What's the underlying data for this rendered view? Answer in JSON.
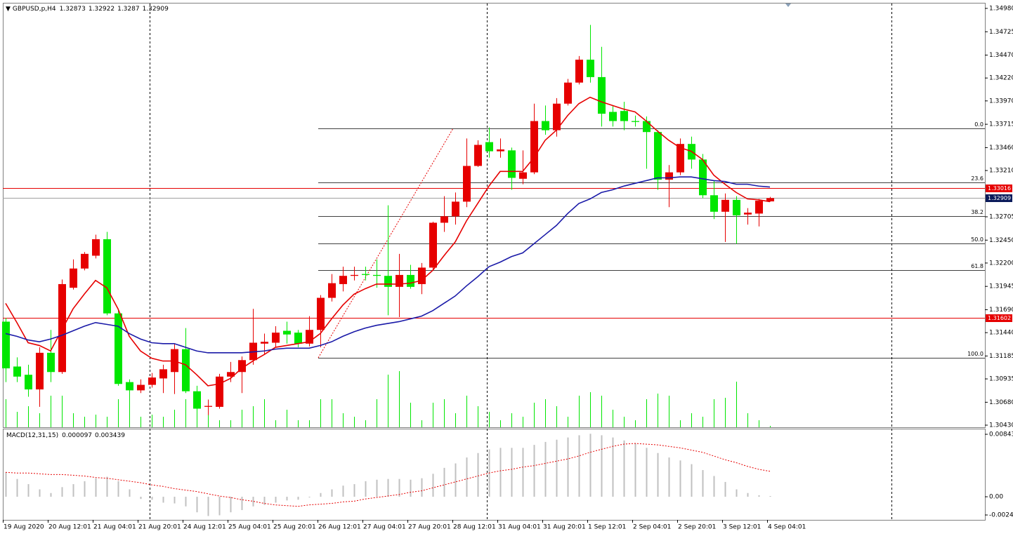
{
  "chart_data": [
    {
      "type": "candlestick",
      "symbol": "GBPUSD,p,H4",
      "categories": [
        "19 Aug 2020",
        null,
        null,
        null,
        "20 Aug 12:01",
        null,
        null,
        null,
        "21 Aug 04:01",
        null,
        null,
        null,
        "21 Aug 20:01",
        null,
        null,
        null,
        "24 Aug 12:01",
        null,
        null,
        null,
        "25 Aug 04:01",
        null,
        null,
        null,
        "25 Aug 20:01",
        null,
        null,
        null,
        "26 Aug 12:01",
        null,
        null,
        null,
        "27 Aug 04:01",
        null,
        null,
        null,
        "27 Aug 20:01",
        null,
        null,
        null,
        "28 Aug 12:01",
        null,
        null,
        null,
        "31 Aug 04:01",
        null,
        null,
        null,
        "31 Aug 20:01",
        null,
        null,
        null,
        "1 Sep 12:01",
        null,
        null,
        null,
        "2 Sep 04:01",
        null,
        null,
        null,
        "2 Sep 20:01",
        null,
        null,
        null,
        "3 Sep 12:01",
        null,
        null,
        null,
        "4 Sep 04:01"
      ],
      "candles": {
        "open": [
          1.3156,
          1.3107,
          1.3098,
          1.3082,
          1.3122,
          1.3101,
          1.3193,
          1.3214,
          1.3228,
          1.3246,
          1.3165,
          1.309,
          1.3081,
          1.3087,
          1.3094,
          1.3101,
          1.3126,
          1.308,
          1.3063,
          1.3063,
          1.3096,
          1.3101,
          1.3114,
          1.3132,
          1.3133,
          1.3146,
          1.3144,
          1.3132,
          1.3147,
          1.3182,
          1.3197,
          1.3206,
          1.3208,
          1.3207,
          1.3206,
          1.3194,
          1.3207,
          1.3197,
          1.3215,
          1.3264,
          1.3271,
          1.3287,
          1.3326,
          1.3352,
          1.3342,
          1.3343,
          1.3312,
          1.3319,
          1.3375,
          1.3365,
          1.3394,
          1.3417,
          1.3442,
          1.3423,
          1.3385,
          1.3386,
          1.3375,
          1.3375,
          1.3363,
          1.3311,
          1.3319,
          1.335,
          1.3333,
          1.3294,
          1.3276,
          1.3289,
          1.3273,
          1.3274,
          1.32873
        ],
        "high": [
          1.316,
          1.3117,
          1.3109,
          1.3128,
          1.3147,
          1.3202,
          1.3224,
          1.3232,
          1.3251,
          1.3254,
          1.317,
          1.3093,
          1.3093,
          1.31,
          1.3109,
          1.3132,
          1.3149,
          1.3086,
          1.3071,
          1.3099,
          1.3112,
          1.3118,
          1.317,
          1.3143,
          1.3151,
          1.3156,
          1.3147,
          1.3162,
          1.3185,
          1.3208,
          1.3216,
          1.3216,
          1.3216,
          1.3224,
          1.3283,
          1.323,
          1.3218,
          1.322,
          1.3265,
          1.3293,
          1.3297,
          1.3356,
          1.3354,
          1.3368,
          1.3356,
          1.3346,
          1.3343,
          1.3394,
          1.3392,
          1.34,
          1.3421,
          1.3446,
          1.348,
          1.3456,
          1.3392,
          1.3396,
          1.3381,
          1.338,
          1.3365,
          1.3327,
          1.3356,
          1.3358,
          1.3339,
          1.331,
          1.3296,
          1.3293,
          1.328,
          1.329,
          1.32922
        ],
        "low": [
          1.309,
          1.309,
          1.3074,
          1.3063,
          1.309,
          1.3099,
          1.3191,
          1.3212,
          1.3225,
          1.3163,
          1.3086,
          1.3078,
          1.3078,
          1.3084,
          1.3078,
          1.3077,
          1.3078,
          1.3059,
          1.3054,
          1.3061,
          1.309,
          1.3078,
          1.3109,
          1.312,
          1.3128,
          1.3132,
          1.3128,
          1.3129,
          1.3128,
          1.3178,
          1.3189,
          1.3201,
          1.3201,
          1.3193,
          1.3163,
          1.3161,
          1.3192,
          1.3186,
          1.3212,
          1.3254,
          1.3262,
          1.3281,
          1.3325,
          1.3335,
          1.3335,
          1.33,
          1.3306,
          1.3317,
          1.336,
          1.3358,
          1.3392,
          1.3415,
          1.3417,
          1.3369,
          1.3369,
          1.3365,
          1.3369,
          1.3323,
          1.33,
          1.3281,
          1.3316,
          1.3323,
          1.3291,
          1.3268,
          1.3243,
          1.3241,
          1.3262,
          1.326,
          1.3287
        ],
        "close": [
          1.3105,
          1.3096,
          1.3082,
          1.3122,
          1.3101,
          1.3197,
          1.3214,
          1.323,
          1.3246,
          1.3165,
          1.3088,
          1.3081,
          1.3087,
          1.3095,
          1.3104,
          1.3126,
          1.308,
          1.3061,
          1.3064,
          1.3096,
          1.3101,
          1.3114,
          1.3133,
          1.3134,
          1.3144,
          1.3142,
          1.3132,
          1.3147,
          1.3182,
          1.3198,
          1.3206,
          1.3207,
          1.3207,
          1.3206,
          1.3194,
          1.3207,
          1.3194,
          1.3215,
          1.3264,
          1.3271,
          1.3287,
          1.3326,
          1.3349,
          1.3342,
          1.3344,
          1.3313,
          1.3319,
          1.3375,
          1.3365,
          1.3394,
          1.3417,
          1.3442,
          1.3423,
          1.3383,
          1.3375,
          1.3375,
          1.3374,
          1.3363,
          1.3311,
          1.3319,
          1.335,
          1.3333,
          1.3294,
          1.3276,
          1.3289,
          1.3272,
          1.3275,
          1.3288,
          1.32909
        ]
      },
      "up_color": "#e60000",
      "down_color": "#00e600",
      "volume": {
        "color": "#00e600",
        "values": [
          4000,
          2200,
          3000,
          2000,
          4500,
          4500,
          2000,
          1500,
          1800,
          1500,
          4000,
          5000,
          1500,
          1800,
          1500,
          2500,
          4000,
          2500,
          3500,
          1000,
          1000,
          2500,
          3000,
          4000,
          1000,
          2500,
          1000,
          1000,
          4000,
          4000,
          2000,
          1500,
          1000,
          4000,
          7500,
          8000,
          3500,
          1000,
          3500,
          4000,
          2000,
          4500,
          3000,
          2200,
          1000,
          2000,
          1500,
          3500,
          4000,
          3000,
          1500,
          4500,
          5000,
          4500,
          2500,
          1500,
          1000,
          4000,
          4800,
          4500,
          1000,
          2000,
          1500,
          4000,
          4200,
          6500,
          2000,
          1000,
          200
        ]
      },
      "series": [
        {
          "color": "#e60000",
          "values": [
            1.3176,
            1.3155,
            1.3133,
            1.313,
            1.3124,
            1.3147,
            1.317,
            1.3186,
            1.3201,
            1.3193,
            1.317,
            1.314,
            1.3124,
            1.3116,
            1.3113,
            1.3113,
            1.3109,
            1.3098,
            1.3086,
            1.3088,
            1.3094,
            1.3105,
            1.3113,
            1.312,
            1.3128,
            1.313,
            1.3132,
            1.3134,
            1.3143,
            1.3159,
            1.3174,
            1.3186,
            1.3192,
            1.3197,
            1.3197,
            1.3197,
            1.3198,
            1.3201,
            1.3212,
            1.3228,
            1.3243,
            1.3266,
            1.3285,
            1.3304,
            1.332,
            1.332,
            1.332,
            1.3335,
            1.3354,
            1.3365,
            1.3381,
            1.3394,
            1.3401,
            1.3396,
            1.3392,
            1.3388,
            1.3385,
            1.3375,
            1.3364,
            1.3354,
            1.3346,
            1.3342,
            1.3333,
            1.3316,
            1.3306,
            1.3297,
            1.329,
            1.3289,
            1.3287
          ]
        },
        {
          "color": "#1a1aa8",
          "values": [
            1.3143,
            1.314,
            1.3136,
            1.3134,
            1.3137,
            1.3141,
            1.3146,
            1.3151,
            1.3155,
            1.3153,
            1.3151,
            1.3143,
            1.3137,
            1.3133,
            1.3132,
            1.3132,
            1.3128,
            1.3124,
            1.3122,
            1.3122,
            1.3122,
            1.3122,
            1.3123,
            1.3124,
            1.3126,
            1.3127,
            1.3127,
            1.3127,
            1.313,
            1.3134,
            1.314,
            1.3145,
            1.3149,
            1.3152,
            1.3154,
            1.3156,
            1.3159,
            1.3162,
            1.3168,
            1.3176,
            1.3184,
            1.3195,
            1.3205,
            1.3216,
            1.3221,
            1.3227,
            1.3231,
            1.3241,
            1.3251,
            1.3261,
            1.3274,
            1.3285,
            1.329,
            1.3297,
            1.33,
            1.3304,
            1.3307,
            1.331,
            1.3313,
            1.3313,
            1.3314,
            1.3314,
            1.3312,
            1.331,
            1.3309,
            1.3306,
            1.3306,
            1.3304,
            1.3303
          ]
        }
      ],
      "hlines": [
        {
          "value": 1.33016,
          "color": "#e60000"
        },
        {
          "value": 1.31602,
          "color": "#e60000"
        }
      ],
      "bid_color": "#0a1a5a",
      "fibonacci": {
        "from": {
          "index": 28,
          "price": 1.31165
        },
        "to": {
          "index": 40,
          "price": 1.3367
        },
        "color": "#000000",
        "diagonal_color": "#e60000",
        "levels": [
          {
            "value": 0,
            "label": "0.0"
          },
          23.6,
          38.2,
          {
            "value": 50,
            "label": "50.0"
          },
          61.8,
          {
            "value": 100,
            "label": "100.0"
          }
        ]
      },
      "ylim": [
        1.30407,
        1.35041
      ],
      "yticks": [
        {
          "value": 1.3498,
          "label": "1.34980"
        },
        1.34725,
        {
          "value": 1.3447,
          "label": "1.34470"
        },
        {
          "value": 1.3422,
          "label": "1.34220"
        },
        {
          "value": 1.3397,
          "label": "1.33970"
        },
        1.33715,
        {
          "value": 1.3346,
          "label": "1.33460"
        },
        {
          "value": 1.3321,
          "label": "1.33210"
        },
        1.32705,
        {
          "value": 1.3245,
          "label": "1.32450"
        },
        {
          "value": 1.322,
          "label": "1.32200"
        },
        1.31945,
        {
          "value": 1.3169,
          "label": "1.31690"
        },
        {
          "value": 1.3144,
          "label": "1.31440"
        },
        1.31185,
        1.30935,
        {
          "value": 1.3068,
          "label": "1.30680"
        },
        {
          "value": 1.3043,
          "label": "1.30430"
        }
      ]
    },
    {
      "type": "macd",
      "title": "MACD(12,31,15)",
      "histogram": {
        "color": "#c0c0c0",
        "values": [
          0.0033,
          0.0024,
          0.0017,
          0.001,
          0.0005,
          0.0013,
          0.0017,
          0.0021,
          0.0025,
          0.0027,
          0.0021,
          0.001,
          -0.0003,
          -0.0004,
          -0.0008,
          -0.0009,
          -0.0013,
          -0.0021,
          -0.0026,
          -0.0025,
          -0.0021,
          -0.0018,
          -0.0013,
          -0.0011,
          -0.0008,
          -0.0005,
          -0.0004,
          -0.0001,
          0.0005,
          0.001,
          0.0015,
          0.0017,
          0.0021,
          0.0023,
          0.0024,
          0.0024,
          0.0023,
          0.0025,
          0.0031,
          0.0039,
          0.0045,
          0.0053,
          0.0059,
          0.0064,
          0.0066,
          0.0066,
          0.0066,
          0.007,
          0.0074,
          0.0077,
          0.008,
          0.0083,
          0.0085,
          0.0083,
          0.008,
          0.0076,
          0.0072,
          0.0066,
          0.0059,
          0.0053,
          0.0049,
          0.0044,
          0.0036,
          0.0028,
          0.002,
          0.001,
          0.0005,
          0.0002,
          9.7e-05
        ]
      },
      "signal": {
        "color": "#e60000",
        "values": [
          0.0033,
          0.0032,
          0.0032,
          0.0031,
          0.003,
          0.003,
          0.0029,
          0.0028,
          0.0026,
          0.0025,
          0.0023,
          0.0021,
          0.0019,
          0.0016,
          0.0014,
          0.0011,
          0.0009,
          0.0007,
          0.0004,
          0.0001,
          -0.0001,
          -0.0004,
          -0.0006,
          -0.0009,
          -0.0011,
          -0.0012,
          -0.0013,
          -0.0011,
          -0.001,
          -0.0009,
          -0.0007,
          -0.0006,
          -0.0003,
          -0.0001,
          0.0001,
          0.0003,
          0.0006,
          0.0008,
          0.0012,
          0.0016,
          0.002,
          0.0024,
          0.0028,
          0.0032,
          0.0035,
          0.0037,
          0.004,
          0.0042,
          0.0045,
          0.0048,
          0.0051,
          0.0055,
          0.006,
          0.0064,
          0.0068,
          0.0071,
          0.0072,
          0.0071,
          0.007,
          0.0068,
          0.0066,
          0.0063,
          0.006,
          0.0055,
          0.005,
          0.0046,
          0.0041,
          0.0037,
          0.003439
        ]
      },
      "ylim": [
        -0.00312,
        0.00919
      ],
      "yticks": [
        0.00843,
        {
          "value": 0,
          "label": "0.00"
        },
        -0.00246
      ]
    }
  ]
}
